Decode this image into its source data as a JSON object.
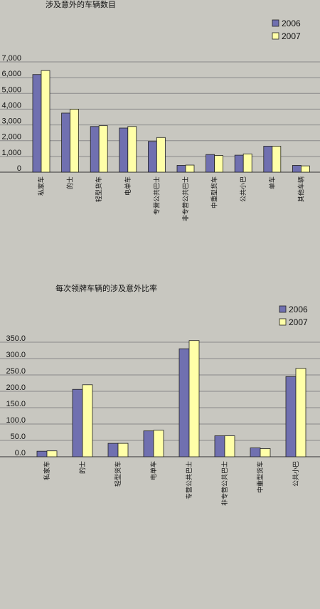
{
  "chart_data": [
    {
      "type": "bar",
      "title": "涉及意外的车辆数目",
      "categories": [
        "私家车",
        "的士",
        "轻型货车",
        "电单车",
        "专营公共巴士",
        "非专营公共巴士",
        "中重型货车",
        "公共小巴",
        "单车",
        "其他车辆"
      ],
      "y_ticks": [
        "0",
        "1,000",
        "2,000",
        "3,000",
        "4,000",
        "5,000",
        "6,000",
        "7,000"
      ],
      "ylim": [
        0,
        7000
      ],
      "grid": true,
      "legend": "top-right",
      "series": [
        {
          "name": "2006",
          "color": "#7070b0",
          "values": [
            6200,
            3750,
            2900,
            2800,
            1950,
            430,
            1120,
            1080,
            1650,
            430
          ]
        },
        {
          "name": "2007",
          "color": "#ffffa8",
          "values": [
            6450,
            4000,
            2950,
            2900,
            2200,
            450,
            1060,
            1160,
            1650,
            400
          ]
        }
      ]
    },
    {
      "type": "bar",
      "title": "每次领牌车辆的涉及意外比率",
      "categories": [
        "私家车",
        "的士",
        "轻型货车",
        "电单车",
        "专营公共巴士",
        "非专营公共巴士",
        "中重型货车",
        "公共小巴"
      ],
      "y_ticks": [
        "0.0",
        "50.0",
        "100.0",
        "150.0",
        "200.0",
        "250.0",
        "300.0",
        "350.0"
      ],
      "ylim": [
        0,
        350
      ],
      "grid": true,
      "legend": "top-right",
      "series": [
        {
          "name": "2006",
          "color": "#7070b0",
          "values": [
            17,
            206,
            41,
            79,
            330,
            64,
            27,
            245
          ]
        },
        {
          "name": "2007",
          "color": "#ffffa8",
          "values": [
            18,
            220,
            41,
            81,
            355,
            64,
            25,
            270
          ]
        }
      ]
    }
  ]
}
